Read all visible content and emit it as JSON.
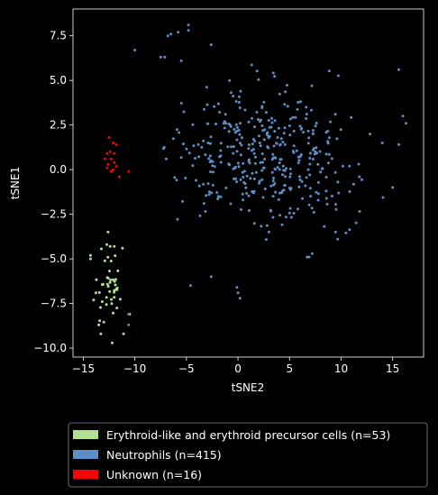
{
  "chart_data": {
    "type": "scatter",
    "title": "",
    "xlabel": "tSNE2",
    "ylabel": "tSNE1",
    "xlim": [
      -16,
      18
    ],
    "ylim": [
      -10.5,
      9
    ],
    "xticks": [
      -15,
      -10,
      -5,
      0,
      5,
      10,
      15
    ],
    "yticks": [
      -10.0,
      -7.5,
      -5.0,
      -2.5,
      0.0,
      2.5,
      5.0,
      7.5
    ],
    "xtick_labels": [
      "−15",
      "−10",
      "−5",
      "0",
      "5",
      "10",
      "15"
    ],
    "ytick_labels": [
      "−10.0",
      "−7.5",
      "−5.0",
      "−2.5",
      "0.0",
      "2.5",
      "5.0",
      "7.5"
    ],
    "grid": false,
    "legend_position": "below",
    "series": [
      {
        "name": "Erythroid-like and erythroid precursor cells (n=53)",
        "color": "#b2e094",
        "cluster": {
          "cx": -12.5,
          "cy": -6.6,
          "sx": 0.9,
          "sy": 1.4,
          "clip": [
            -14.6,
            -10.6,
            -9.7,
            -3.5
          ]
        },
        "points": [
          [
            -12.6,
            -3.5
          ],
          [
            -14.3,
            -4.8
          ],
          [
            -14.3,
            -5.0
          ],
          [
            -11.2,
            -4.4
          ],
          [
            -10.5,
            -8.1
          ],
          [
            -13.5,
            -8.7
          ],
          [
            -12.2,
            -9.7
          ],
          [
            -11.1,
            -9.2
          ],
          [
            -14.0,
            -7.3
          ],
          [
            -13.3,
            -9.2
          ],
          [
            -12.4,
            -4.3
          ],
          [
            -12.0,
            -4.3
          ]
        ]
      },
      {
        "name": "Neutrophils (n=415)",
        "color": "#5b8fc4",
        "cluster": {
          "cx": 2.5,
          "cy": 0.8,
          "sx": 6.4,
          "sy": 2.6,
          "clip": [
            -10.8,
            16.3,
            -8.8,
            8.1
          ]
        },
        "points": [
          [
            -4.8,
            8.1
          ],
          [
            -4.8,
            7.8
          ],
          [
            -6.8,
            7.5
          ],
          [
            -6.5,
            7.6
          ],
          [
            -5.8,
            7.7
          ],
          [
            -2.6,
            7.0
          ],
          [
            -10.0,
            6.7
          ],
          [
            -7.5,
            6.3
          ],
          [
            -7.1,
            6.3
          ],
          [
            -5.5,
            6.1
          ],
          [
            -10.6,
            -8.7
          ],
          [
            -10.6,
            -8.1
          ],
          [
            -4.6,
            -6.5
          ],
          [
            -2.6,
            -6.0
          ],
          [
            -0.1,
            -6.6
          ],
          [
            0.2,
            -7.2
          ],
          [
            0.0,
            -6.9
          ],
          [
            3.0,
            -3.5
          ],
          [
            6.7,
            -4.9
          ],
          [
            6.9,
            -4.9
          ],
          [
            7.2,
            -4.7
          ],
          [
            15.6,
            5.6
          ],
          [
            16.3,
            2.6
          ],
          [
            16.0,
            3.0
          ],
          [
            15.6,
            1.4
          ],
          [
            14.0,
            1.5
          ],
          [
            12.8,
            2.0
          ]
        ]
      },
      {
        "name": "Unknown (n=16)",
        "color": "#ff0000",
        "cluster": {
          "cx": -12.3,
          "cy": 0.5,
          "sx": 0.4,
          "sy": 0.5,
          "clip": [
            -13.0,
            -10.5,
            -0.5,
            1.9
          ]
        },
        "points": [
          [
            -12.5,
            1.8
          ],
          [
            -12.1,
            1.5
          ],
          [
            -11.8,
            1.4
          ],
          [
            -10.6,
            -0.1
          ],
          [
            -11.5,
            -0.4
          ],
          [
            -12.9,
            0.6
          ],
          [
            -12.7,
            0.1
          ],
          [
            -12.3,
            0.6
          ],
          [
            -12.0,
            0.4
          ],
          [
            -12.4,
            1.0
          ],
          [
            -12.0,
            0.9
          ],
          [
            -12.6,
            0.3
          ],
          [
            -12.3,
            -0.1
          ],
          [
            -11.8,
            0.2
          ],
          [
            -12.7,
            0.9
          ],
          [
            -12.1,
            0.0
          ]
        ]
      }
    ]
  }
}
